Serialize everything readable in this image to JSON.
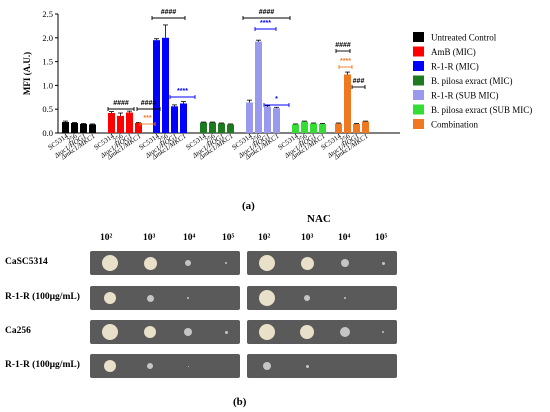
{
  "chart_data": {
    "type": "bar",
    "ylabel": "MFI (A.U.)",
    "ylim": [
      0,
      2.5
    ],
    "yticks": [
      "0.0",
      "0.5",
      "1.0",
      "1.5",
      "2.0",
      "2.5"
    ],
    "categories": [
      "SC5314",
      "256",
      "Δtac1/HOG1",
      "Δmkc1/MKC1"
    ],
    "legend_position": "right",
    "groups": [
      {
        "name": "Untreated Control",
        "color": "#000000",
        "values": [
          0.23,
          0.21,
          0.19,
          0.18
        ],
        "errors": [
          0.02,
          0.01,
          0.01,
          0.01
        ]
      },
      {
        "name": "AmB (MIC)",
        "color": "#ff0000",
        "values": [
          0.42,
          0.36,
          0.43,
          0.21
        ],
        "errors": [
          0.03,
          0.06,
          0.03,
          0.01
        ]
      },
      {
        "name": "R-1-R (MIC)",
        "color": "#0000ff",
        "values": [
          1.95,
          2.0,
          0.56,
          0.62
        ],
        "errors": [
          0.03,
          0.27,
          0.03,
          0.04
        ]
      },
      {
        "name": "B. pilosa exract (MIC)",
        "color": "#1e7a1e",
        "values": [
          0.22,
          0.22,
          0.2,
          0.18
        ],
        "errors": [
          0.01,
          0.01,
          0.01,
          0.01
        ]
      },
      {
        "name": "R-1-R (SUB MIC)",
        "color": "#9999ee",
        "values": [
          0.64,
          1.92,
          0.55,
          0.52
        ],
        "errors": [
          0.05,
          0.03,
          0.02,
          0.02
        ]
      },
      {
        "name": "B. pilosa exract (SUB MIC)",
        "color": "#33dd33",
        "values": [
          0.18,
          0.24,
          0.2,
          0.19
        ],
        "errors": [
          0.01,
          0.01,
          0.01,
          0.01
        ]
      },
      {
        "name": "Combination",
        "color": "#f07820",
        "values": [
          0.2,
          1.23,
          0.19,
          0.24
        ],
        "errors": [
          0.01,
          0.05,
          0.01,
          0.01
        ]
      }
    ],
    "annotations": [
      {
        "group": 1,
        "text": "####",
        "color": "#000000"
      },
      {
        "group": 1,
        "text": "####",
        "color": "#000000"
      },
      {
        "group": 1,
        "text": "***",
        "color": "#f07820"
      },
      {
        "group": 2,
        "text": "####",
        "color": "#000000"
      },
      {
        "group": 2,
        "text": "****",
        "color": "#0000ff"
      },
      {
        "group": 4,
        "text": "####",
        "color": "#000000"
      },
      {
        "group": 4,
        "text": "****",
        "color": "#0000ff"
      },
      {
        "group": 4,
        "text": "*",
        "color": "#0000ff"
      },
      {
        "group": 6,
        "text": "####",
        "color": "#000000"
      },
      {
        "group": 6,
        "text": "****",
        "color": "#f07820"
      },
      {
        "group": 6,
        "text": "###",
        "color": "#000000"
      }
    ]
  },
  "panel_a_label": "(a)",
  "panel_b_label": "(b)",
  "nac_label": "NAC",
  "concentrations": [
    "10²",
    "10³",
    "10⁴",
    "10⁵"
  ],
  "spot_rows": [
    "CaSC5314",
    "R-1-R (100µg/mL)",
    "Ca256",
    "R-1-R (100µg/mL)"
  ]
}
